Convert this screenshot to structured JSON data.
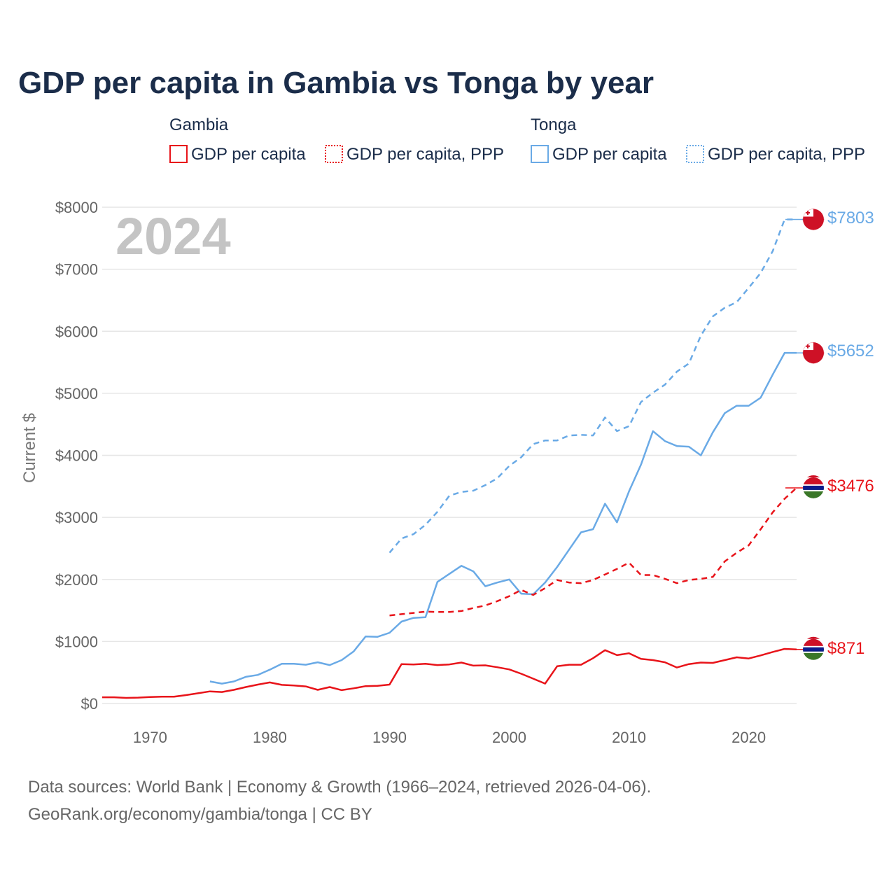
{
  "title": "GDP per capita in Gambia vs Tonga by year",
  "year_watermark": "2024",
  "legend": {
    "groups": [
      {
        "name": "Gambia",
        "items": [
          "GDP per capita",
          "GDP per capita, PPP"
        ]
      },
      {
        "name": "Tonga",
        "items": [
          "GDP per capita",
          "GDP per capita, PPP"
        ]
      }
    ]
  },
  "colors": {
    "gambia": "#e8141a",
    "tonga": "#6aaae6",
    "grid": "#e6e6e6",
    "flag_red": "#ce1126",
    "flag_blue": "#0c1c8c",
    "flag_green": "#3a7728"
  },
  "footer": {
    "line1": "Data sources: World Bank | Economy & Growth (1966–2024, retrieved 2026-04-06).",
    "line2": "GeoRank.org/economy/gambia/tonga | CC BY"
  },
  "end_labels": {
    "tonga_ppp": "$7803",
    "tonga_gdp": "$5652",
    "gambia_ppp": "$3476",
    "gambia_gdp": "$871"
  },
  "chart_data": {
    "type": "line",
    "title": "GDP per capita in Gambia vs Tonga by year",
    "xlabel": "",
    "ylabel": "Current $",
    "xlim": [
      1966,
      2024
    ],
    "ylim": [
      0,
      8000
    ],
    "x_ticks": [
      1970,
      1980,
      1990,
      2000,
      2010,
      2020
    ],
    "x_tick_labels": [
      "1970",
      "1980",
      "1990",
      "2000",
      "2010",
      "2020"
    ],
    "y_ticks": [
      0,
      1000,
      2000,
      3000,
      4000,
      5000,
      6000,
      7000,
      8000
    ],
    "y_tick_labels": [
      "$0",
      "$1000",
      "$2000",
      "$3000",
      "$4000",
      "$5000",
      "$6000",
      "$7000",
      "$8000"
    ],
    "grid": true,
    "series": [
      {
        "name": "Gambia GDP per capita",
        "country": "gambia",
        "style": "solid",
        "x": [
          1966,
          1967,
          1968,
          1969,
          1970,
          1971,
          1972,
          1973,
          1974,
          1975,
          1976,
          1977,
          1978,
          1979,
          1980,
          1981,
          1982,
          1983,
          1984,
          1985,
          1986,
          1987,
          1988,
          1989,
          1990,
          1991,
          1992,
          1993,
          1994,
          1995,
          1996,
          1997,
          1998,
          1999,
          2000,
          2001,
          2002,
          2003,
          2004,
          2005,
          2006,
          2007,
          2008,
          2009,
          2010,
          2011,
          2012,
          2013,
          2014,
          2015,
          2016,
          2017,
          2018,
          2019,
          2020,
          2021,
          2022,
          2023,
          2024
        ],
        "values": [
          100,
          100,
          90,
          95,
          105,
          110,
          110,
          135,
          165,
          195,
          185,
          220,
          265,
          305,
          340,
          300,
          290,
          275,
          220,
          265,
          215,
          245,
          280,
          285,
          305,
          635,
          630,
          640,
          620,
          630,
          660,
          610,
          615,
          585,
          550,
          480,
          400,
          320,
          600,
          625,
          625,
          730,
          860,
          780,
          810,
          720,
          700,
          665,
          580,
          635,
          660,
          655,
          700,
          745,
          725,
          775,
          830,
          880,
          871
        ]
      },
      {
        "name": "Gambia GDP per capita, PPP",
        "country": "gambia",
        "style": "dashed",
        "x": [
          1990,
          1991,
          1992,
          1993,
          1994,
          1995,
          1996,
          1997,
          1998,
          1999,
          2000,
          2001,
          2002,
          2003,
          2004,
          2005,
          2006,
          2007,
          2008,
          2009,
          2010,
          2011,
          2012,
          2013,
          2014,
          2015,
          2016,
          2017,
          2018,
          2019,
          2020,
          2021,
          2022,
          2023,
          2024
        ],
        "values": [
          1420,
          1440,
          1460,
          1480,
          1475,
          1475,
          1490,
          1540,
          1580,
          1650,
          1730,
          1830,
          1750,
          1860,
          1990,
          1950,
          1940,
          1990,
          2080,
          2170,
          2270,
          2070,
          2070,
          2010,
          1940,
          1990,
          2010,
          2040,
          2290,
          2430,
          2550,
          2810,
          3080,
          3300,
          3476
        ]
      },
      {
        "name": "Tonga GDP per capita",
        "country": "tonga",
        "style": "solid",
        "x": [
          1975,
          1976,
          1977,
          1978,
          1979,
          1980,
          1981,
          1982,
          1983,
          1984,
          1985,
          1986,
          1987,
          1988,
          1989,
          1990,
          1991,
          1992,
          1993,
          1994,
          1995,
          1996,
          1997,
          1998,
          1999,
          2000,
          2001,
          2002,
          2003,
          2004,
          2005,
          2006,
          2007,
          2008,
          2009,
          2010,
          2011,
          2012,
          2013,
          2014,
          2015,
          2016,
          2017,
          2018,
          2019,
          2020,
          2021,
          2022,
          2023,
          2024
        ],
        "values": [
          355,
          320,
          355,
          430,
          460,
          545,
          640,
          640,
          625,
          665,
          620,
          700,
          840,
          1080,
          1075,
          1140,
          1320,
          1380,
          1390,
          1960,
          2090,
          2220,
          2130,
          1890,
          1950,
          2000,
          1770,
          1760,
          1950,
          2200,
          2480,
          2760,
          2810,
          3220,
          2920,
          3420,
          3850,
          4390,
          4230,
          4150,
          4140,
          4000,
          4370,
          4680,
          4800,
          4800,
          4930,
          5300,
          5652,
          5652
        ]
      },
      {
        "name": "Tonga GDP per capita, PPP",
        "country": "tonga",
        "style": "dashed",
        "x": [
          1990,
          1991,
          1992,
          1993,
          1994,
          1995,
          1996,
          1997,
          1998,
          1999,
          2000,
          2001,
          2002,
          2003,
          2004,
          2005,
          2006,
          2007,
          2008,
          2009,
          2010,
          2011,
          2012,
          2013,
          2014,
          2015,
          2016,
          2017,
          2018,
          2019,
          2020,
          2021,
          2022,
          2023,
          2024
        ],
        "values": [
          2430,
          2660,
          2730,
          2880,
          3090,
          3350,
          3410,
          3430,
          3520,
          3630,
          3830,
          3970,
          4180,
          4240,
          4240,
          4320,
          4330,
          4320,
          4610,
          4390,
          4470,
          4860,
          5010,
          5140,
          5350,
          5480,
          5930,
          6240,
          6380,
          6470,
          6700,
          6940,
          7290,
          7803,
          7803
        ]
      }
    ]
  }
}
